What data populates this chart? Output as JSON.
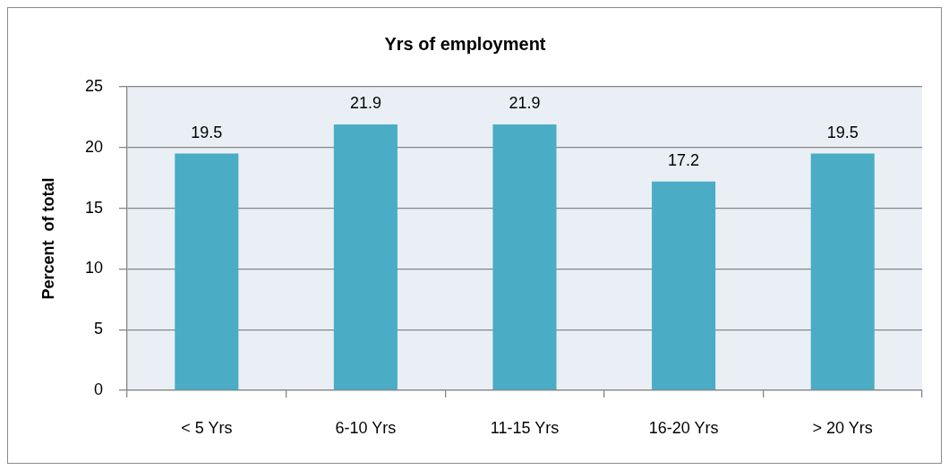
{
  "chart_data": {
    "type": "bar",
    "title": "Yrs of employment",
    "ylabel": "Percent  of total",
    "categories": [
      "< 5 Yrs",
      "6-10 Yrs",
      "11-15 Yrs",
      "16-20 Yrs",
      "> 20 Yrs"
    ],
    "values": [
      19.5,
      21.9,
      21.9,
      17.2,
      19.5
    ],
    "color": "#4bacc6",
    "ylim": [
      0,
      25
    ],
    "yticks": [
      0,
      5,
      10,
      15,
      20,
      25
    ],
    "grid": "y",
    "data_labels": true
  }
}
